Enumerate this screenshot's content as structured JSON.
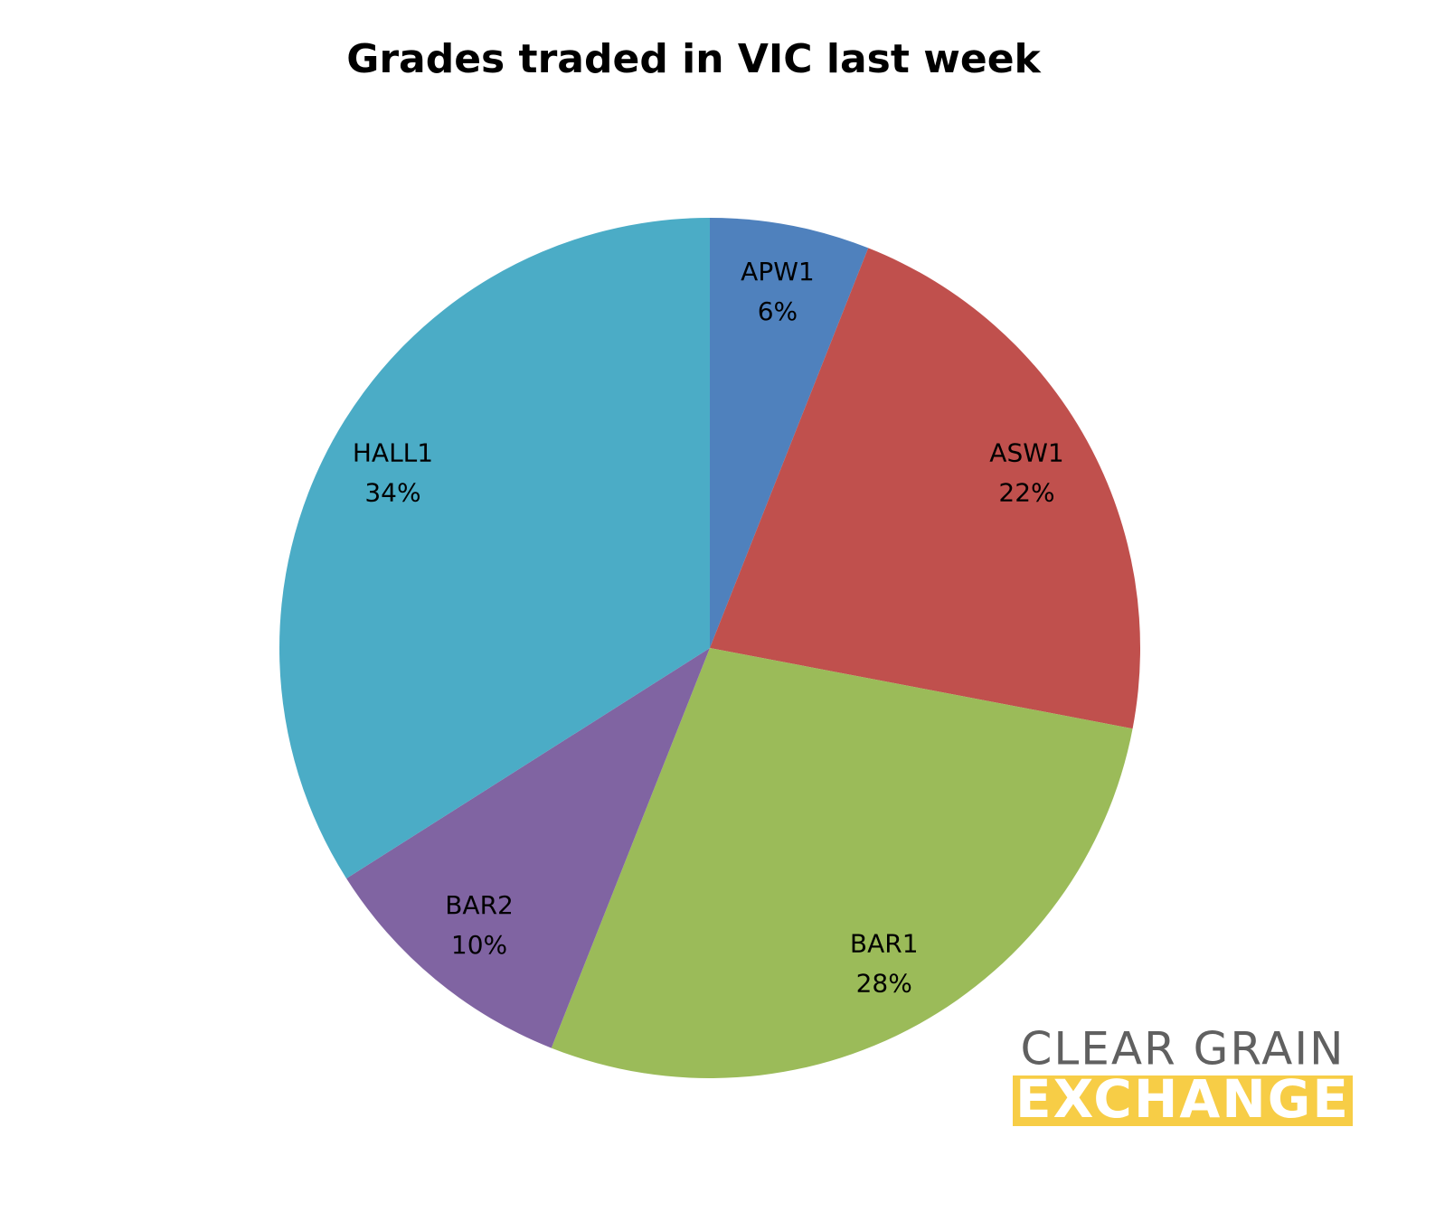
{
  "chart_data": {
    "type": "pie",
    "title": "Grades traded in VIC last week",
    "categories": [
      "APW1",
      "ASW1",
      "BAR1",
      "BAR2",
      "HALL1"
    ],
    "values": [
      6,
      22,
      28,
      10,
      34
    ],
    "value_labels": [
      "6%",
      "22%",
      "28%",
      "10%",
      "34%"
    ],
    "colors": [
      "#4f81bd",
      "#c0504d",
      "#9bbb59",
      "#8064a2",
      "#4bacc6"
    ]
  },
  "logo": {
    "line1": "CLEAR GRAIN",
    "line2": "EXCHANGE"
  }
}
